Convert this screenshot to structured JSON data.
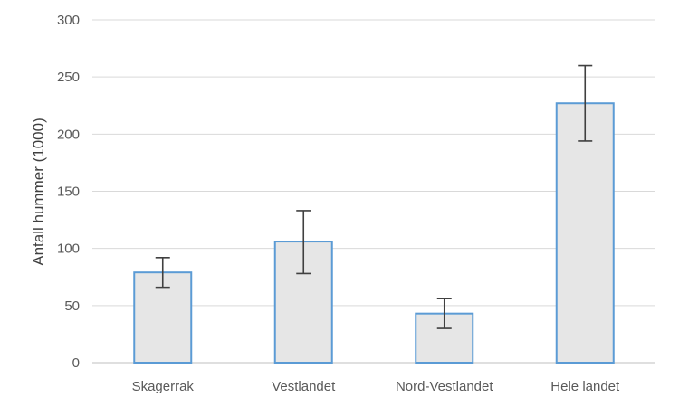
{
  "chart_data": {
    "type": "bar",
    "title": "",
    "xlabel": "",
    "ylabel": "Antall hummer (1000)",
    "categories": [
      "Skagerrak",
      "Vestlandet",
      "Nord-Vestlandet",
      "Hele landet"
    ],
    "values": [
      79,
      106,
      43,
      227
    ],
    "error_low": [
      66,
      78,
      30,
      194
    ],
    "error_high": [
      92,
      133,
      56,
      260
    ],
    "ylim": [
      0,
      300
    ],
    "yticks": [
      "0",
      "50",
      "100",
      "150",
      "200",
      "250",
      "300"
    ],
    "grid": true,
    "legend": "none",
    "colors": {
      "bar_fill": "#e6e6e6",
      "bar_stroke": "#5b9bd5",
      "error_bar": "#404040",
      "grid": "#d9d9d9",
      "axis": "#bfbfbf"
    }
  }
}
